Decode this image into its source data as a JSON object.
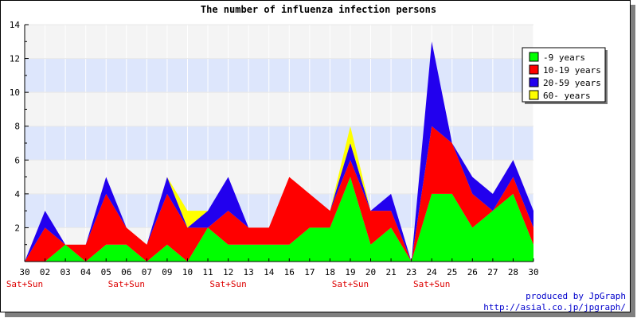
{
  "chart_data": {
    "type": "area",
    "stacked": true,
    "title": "The number of influenza infection persons",
    "categories": [
      "30",
      "02",
      "03",
      "04",
      "05",
      "06",
      "07",
      "09",
      "10",
      "11",
      "12",
      "13",
      "14",
      "16",
      "17",
      "18",
      "19",
      "20",
      "21",
      "23",
      "24",
      "25",
      "26",
      "27",
      "28",
      "30"
    ],
    "weekend_label": "Sat+Sun",
    "weekend_categories": [
      "30",
      "06",
      "12",
      "19",
      "24"
    ],
    "ylim": [
      0,
      14
    ],
    "yticks": [
      2,
      4,
      6,
      8,
      10,
      12,
      14
    ],
    "grid": true,
    "legend_position": "top-right",
    "series": [
      {
        "name": "-9 years",
        "color": "#00ff00",
        "values": [
          0,
          0,
          1,
          0,
          1,
          1,
          0,
          1,
          0,
          2,
          1,
          1,
          1,
          1,
          2,
          2,
          5,
          1,
          2,
          0,
          4,
          4,
          2,
          3,
          4,
          1
        ]
      },
      {
        "name": "10-19 years",
        "color": "#ff0000",
        "values": [
          0,
          2,
          0,
          1,
          3,
          1,
          1,
          3,
          2,
          0,
          2,
          1,
          1,
          4,
          2,
          1,
          1,
          2,
          1,
          0,
          4,
          3,
          2,
          0,
          1,
          1
        ]
      },
      {
        "name": "20-59 years",
        "color": "#2200ee",
        "values": [
          0,
          1,
          0,
          0,
          1,
          0,
          0,
          1,
          0,
          1,
          2,
          0,
          0,
          0,
          0,
          0,
          1,
          0,
          1,
          0,
          5,
          0,
          1,
          1,
          1,
          1
        ]
      },
      {
        "name": "60- years",
        "color": "#ffff00",
        "values": [
          0,
          0,
          0,
          0,
          0,
          0,
          0,
          0,
          1,
          0,
          0,
          0,
          0,
          0,
          0,
          0,
          1,
          0,
          0,
          0,
          0,
          0,
          0,
          0,
          0,
          0
        ]
      }
    ]
  },
  "credits": {
    "line1": "produced by JpGraph",
    "line2": "http://asial.co.jp/jpgraph/"
  }
}
